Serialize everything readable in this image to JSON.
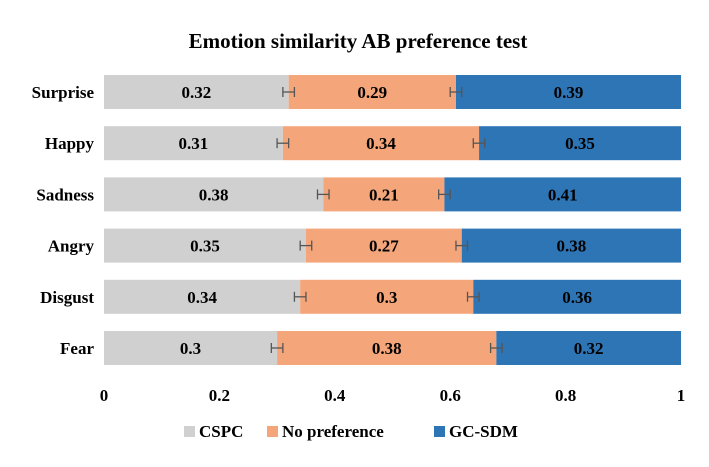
{
  "chart_data": {
    "type": "bar",
    "orientation": "horizontal",
    "stacked": true,
    "title": "Emotion similarity AB preference test",
    "categories": [
      "Surprise",
      "Happy",
      "Sadness",
      "Angry",
      "Disgust",
      "Fear"
    ],
    "series": [
      {
        "name": "CSPC",
        "color": "#d0d0d0",
        "values": [
          0.32,
          0.31,
          0.38,
          0.35,
          0.34,
          0.3
        ],
        "labels": [
          "0.32",
          "0.31",
          "0.38",
          "0.35",
          "0.34",
          "0.3"
        ]
      },
      {
        "name": "No preference",
        "color": "#f4a67a",
        "values": [
          0.29,
          0.34,
          0.21,
          0.27,
          0.3,
          0.38
        ],
        "labels": [
          "0.29",
          "0.34",
          "0.21",
          "0.27",
          "0.3",
          "0.38"
        ]
      },
      {
        "name": "GC-SDM",
        "color": "#2e75b6",
        "values": [
          0.39,
          0.35,
          0.41,
          0.38,
          0.36,
          0.32
        ],
        "labels": [
          "0.39",
          "0.35",
          "0.41",
          "0.38",
          "0.36",
          "0.32"
        ]
      }
    ],
    "error_bars": {
      "half_width": 0.01,
      "at_series_boundaries": true,
      "color": "#555555"
    },
    "xlim": [
      0,
      1
    ],
    "xticks": [
      0,
      0.2,
      0.4,
      0.6,
      0.8,
      1
    ],
    "xtick_labels": [
      "0",
      "0.2",
      "0.4",
      "0.6",
      "0.8",
      "1"
    ],
    "xlabel": "",
    "ylabel": "",
    "grid": false,
    "legend_position": "bottom"
  }
}
